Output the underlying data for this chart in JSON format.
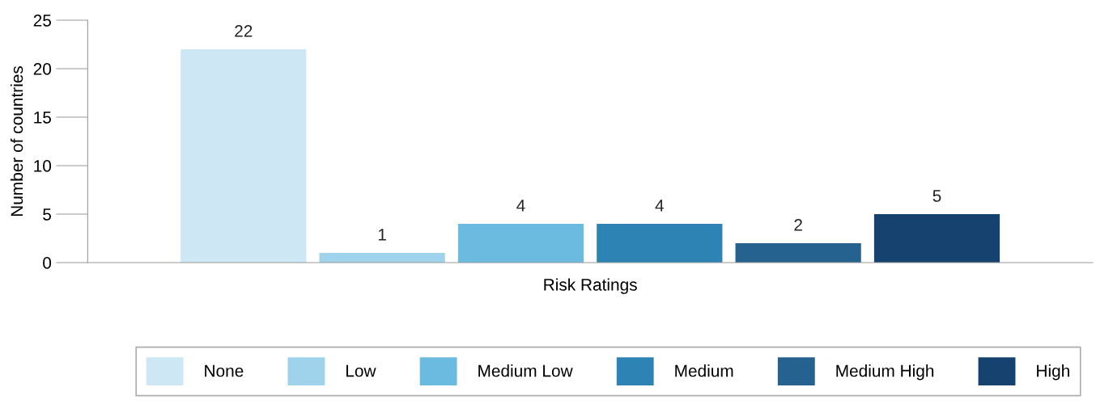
{
  "chart_data": {
    "type": "bar",
    "categories": [
      "Risk Ratings"
    ],
    "ylabel": "Number of countries",
    "series": [
      {
        "name": "None",
        "color": "#cde8f4",
        "values": [
          22
        ]
      },
      {
        "name": "Low",
        "color": "#9fd3ec",
        "values": [
          1
        ]
      },
      {
        "name": "Medium Low",
        "color": "#6bbbe0",
        "values": [
          4
        ]
      },
      {
        "name": "Medium",
        "color": "#2e83b5",
        "values": [
          4
        ]
      },
      {
        "name": "Medium High",
        "color": "#266290",
        "values": [
          2
        ]
      },
      {
        "name": "High",
        "color": "#15426f",
        "values": [
          5
        ]
      }
    ],
    "ylim": [
      0,
      25
    ],
    "yticks": [
      0,
      5,
      10,
      15,
      20,
      25
    ],
    "data_labels": true,
    "legend": "bottom",
    "grid": false
  }
}
